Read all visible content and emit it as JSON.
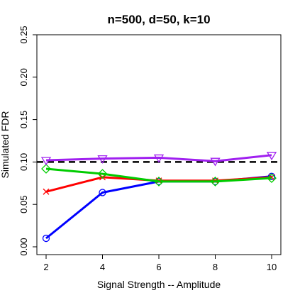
{
  "chart_data": {
    "type": "line",
    "title": "n=500, d=50, k=10",
    "xlabel": "Signal Strength -- Amplitude",
    "ylabel": "Simulated FDR",
    "x": [
      2,
      4,
      6,
      8,
      10
    ],
    "xlim": [
      2,
      10
    ],
    "ylim": [
      0,
      0.25
    ],
    "xticks": [
      "2",
      "4",
      "6",
      "8",
      "10"
    ],
    "yticks": [
      "0.00",
      "0.05",
      "0.10",
      "0.15",
      "0.20",
      "0.25"
    ],
    "reference_line": {
      "y": 0.1,
      "style": "dashed",
      "color": "#000000"
    },
    "grid": false,
    "legend": "none",
    "series": [
      {
        "color": "#0000ff",
        "marker": "circle",
        "values": [
          0.01,
          0.064,
          0.077,
          0.077,
          0.083
        ]
      },
      {
        "color": "#ff0000",
        "marker": "x",
        "values": [
          0.065,
          0.082,
          0.078,
          0.078,
          0.082
        ]
      },
      {
        "color": "#00cc00",
        "marker": "diamond",
        "values": [
          0.092,
          0.086,
          0.077,
          0.077,
          0.081
        ]
      },
      {
        "color": "#a020f0",
        "marker": "triangle-down",
        "values": [
          0.102,
          0.104,
          0.105,
          0.101,
          0.108
        ]
      }
    ]
  }
}
